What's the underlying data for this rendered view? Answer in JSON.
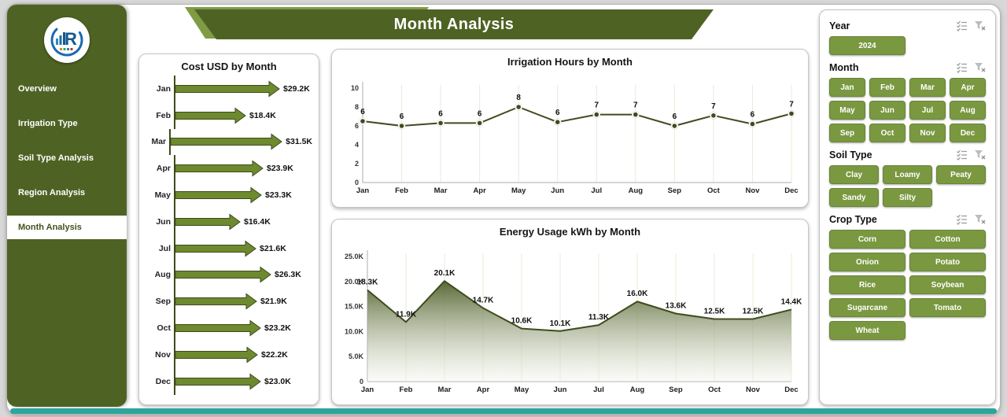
{
  "app": {
    "title": "Month Analysis"
  },
  "logo": {
    "letter": "R"
  },
  "theme": {
    "dark_green": "#4e6323",
    "accent_light_green": "#7f9c45",
    "button_green": "#7a9840",
    "chart_line": "#3f4c1e",
    "arrow_fill": "#6d8a2e",
    "teal_bar": "#2da49c",
    "background": "#d8d8d8"
  },
  "sidebar": {
    "items": [
      {
        "label": "Overview",
        "active": false
      },
      {
        "label": "Irrigation Type",
        "active": false
      },
      {
        "label": "Soil Type Analysis",
        "active": false
      },
      {
        "label": "Region Analysis",
        "active": false
      },
      {
        "label": "Month Analysis",
        "active": true
      }
    ]
  },
  "slicers": [
    {
      "title": "Year",
      "cols": 2,
      "options": [
        "2024"
      ]
    },
    {
      "title": "Month",
      "cols": 4,
      "options": [
        "Jan",
        "Feb",
        "Mar",
        "Apr",
        "May",
        "Jun",
        "Jul",
        "Aug",
        "Sep",
        "Oct",
        "Nov",
        "Dec"
      ]
    },
    {
      "title": "Soil Type",
      "cols": 3,
      "options": [
        "Clay",
        "Loamy",
        "Peaty",
        "Sandy",
        "Silty"
      ]
    },
    {
      "title": "Crop Type",
      "cols": 2,
      "options": [
        "Corn",
        "Cotton",
        "Onion",
        "Potato",
        "Rice",
        "Soybean",
        "Sugarcane",
        "Tomato",
        "Wheat"
      ]
    }
  ],
  "chart_data": [
    {
      "type": "bar",
      "title": "Cost USD by Month",
      "orientation": "horizontal",
      "bar_style": "arrow",
      "categories": [
        "Jan",
        "Feb",
        "Mar",
        "Apr",
        "May",
        "Jun",
        "Jul",
        "Aug",
        "Sep",
        "Oct",
        "Nov",
        "Dec"
      ],
      "values": [
        29.2,
        18.4,
        31.5,
        23.9,
        23.3,
        16.4,
        21.6,
        26.3,
        21.9,
        23.2,
        22.2,
        23.0
      ],
      "labels": [
        "$29.2K",
        "$18.4K",
        "$31.5K",
        "$23.9K",
        "$23.3K",
        "$16.4K",
        "$21.6K",
        "$26.3K",
        "$21.9K",
        "$23.2K",
        "$22.2K",
        "$23.0K"
      ],
      "unit": "USD thousands"
    },
    {
      "type": "line",
      "title": "Irrigation Hours by Month",
      "x": [
        "Jan",
        "Feb",
        "Mar",
        "Apr",
        "May",
        "Jun",
        "Jul",
        "Aug",
        "Sep",
        "Oct",
        "Nov",
        "Dec"
      ],
      "values": [
        6.5,
        6.0,
        6.3,
        6.3,
        8.0,
        6.4,
        7.2,
        7.2,
        6.0,
        7.1,
        6.2,
        7.3
      ],
      "labels": [
        "6",
        "6",
        "6",
        "6",
        "8",
        "6",
        "7",
        "7",
        "6",
        "7",
        "6",
        "7"
      ],
      "ylim": [
        0,
        10
      ],
      "yticks": [
        0,
        2,
        4,
        6,
        8,
        10
      ],
      "ytick_labels": [
        "0",
        "2",
        "4",
        "6",
        "8",
        "10"
      ],
      "grid": "vertical",
      "legend": "none"
    },
    {
      "type": "area",
      "title": "Energy Usage kWh by Month",
      "x": [
        "Jan",
        "Feb",
        "Mar",
        "Apr",
        "May",
        "Jun",
        "Jul",
        "Aug",
        "Sep",
        "Oct",
        "Nov",
        "Dec"
      ],
      "values": [
        18.3,
        11.9,
        20.1,
        14.7,
        10.6,
        10.1,
        11.3,
        16.0,
        13.6,
        12.5,
        12.5,
        14.4
      ],
      "labels": [
        "18.3K",
        "11.9K",
        "20.1K",
        "14.7K",
        "10.6K",
        "10.1K",
        "11.3K",
        "16.0K",
        "13.6K",
        "12.5K",
        "12.5K",
        "14.4K"
      ],
      "ylim": [
        0,
        25
      ],
      "yticks": [
        0,
        5,
        10,
        15,
        20,
        25
      ],
      "ytick_labels": [
        "0",
        "5.0K",
        "10.0K",
        "15.0K",
        "20.0K",
        "25.0K"
      ],
      "grid": "vertical",
      "unit": "kWh thousands",
      "legend": "none"
    }
  ]
}
